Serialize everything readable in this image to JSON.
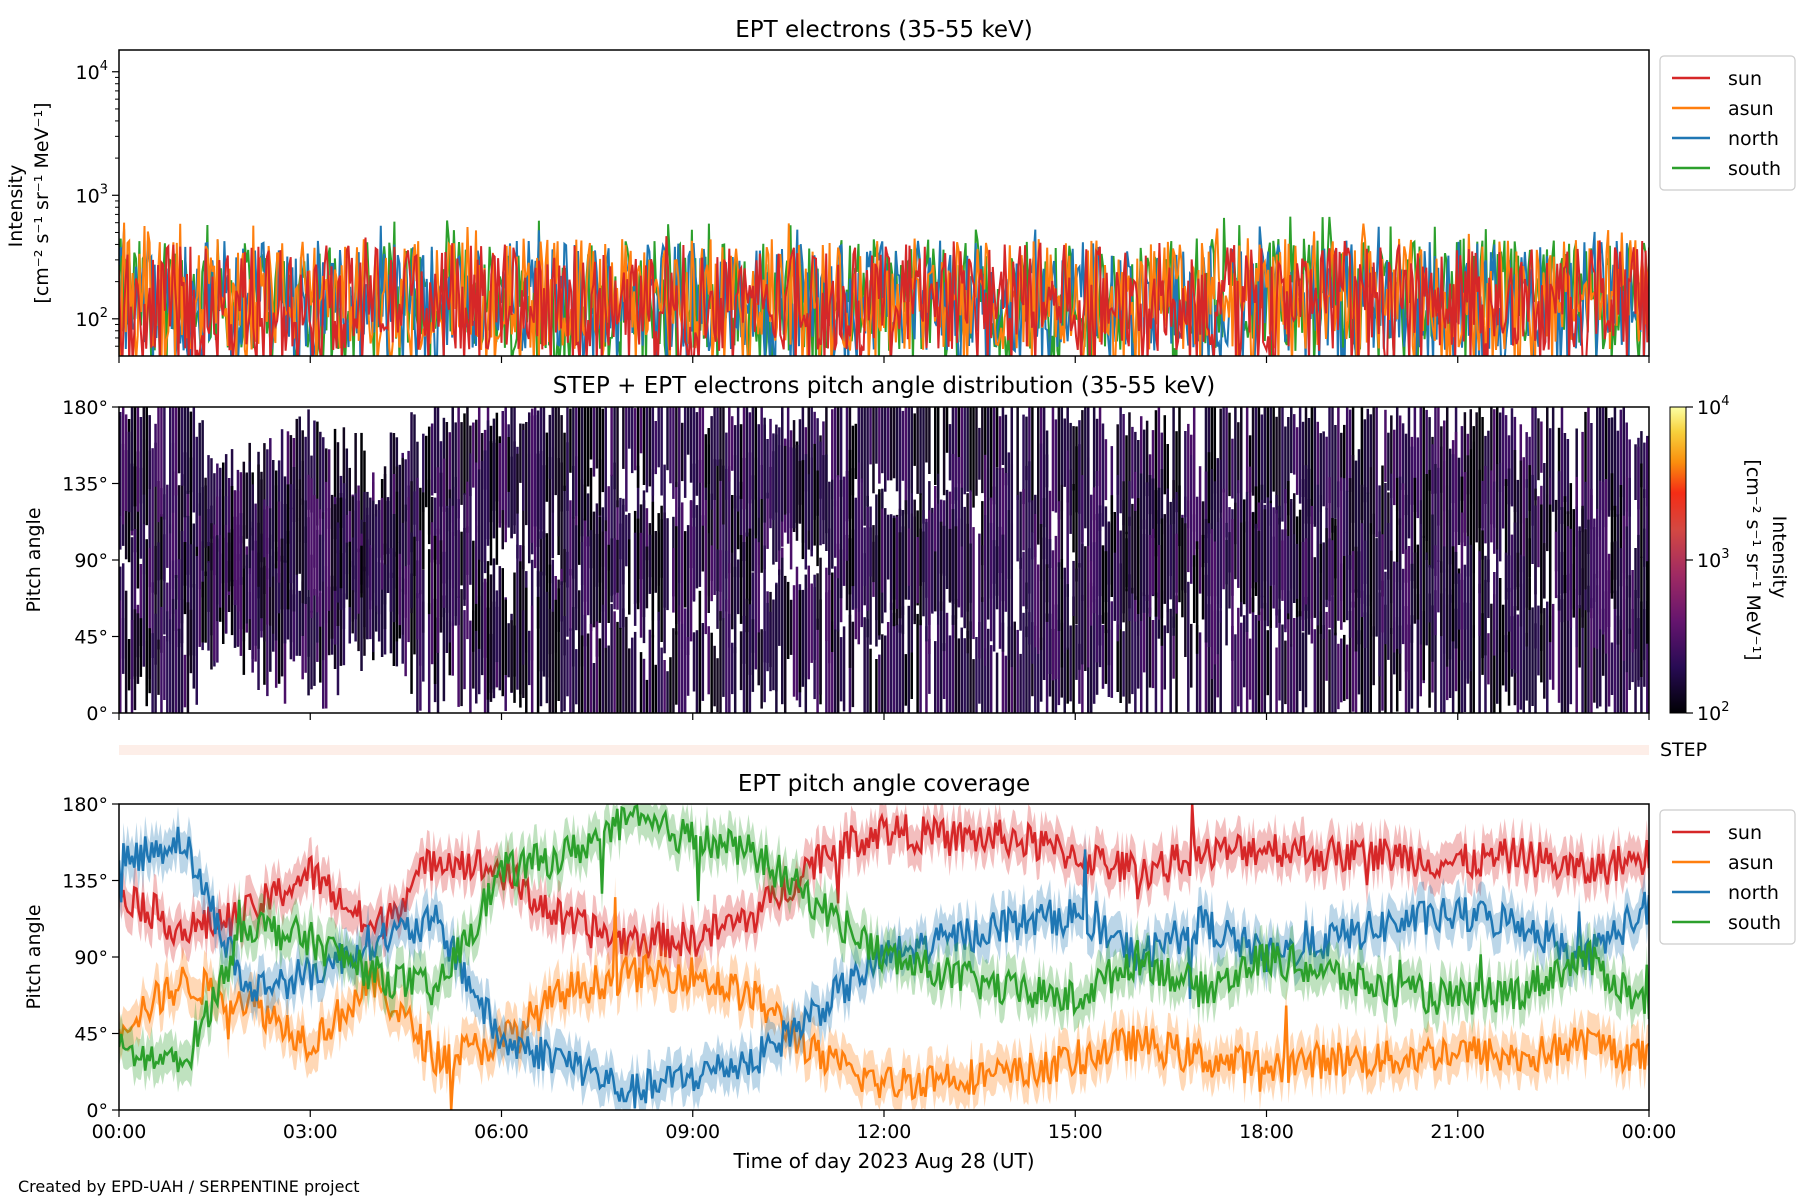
{
  "figure": {
    "credit": "Created by EPD-UAH / SERPENTINE project",
    "xlabel": "Time of day 2023 Aug 28 (UT)",
    "xticks": [
      "00:00",
      "03:00",
      "06:00",
      "09:00",
      "12:00",
      "15:00",
      "18:00",
      "21:00",
      "00:00"
    ]
  },
  "chart_data": [
    {
      "type": "line",
      "title": "EPT electrons (35-55 keV)",
      "ylabel_lines": [
        "Intensity",
        "[cm⁻² s⁻¹ sr⁻¹ MeV⁻¹]"
      ],
      "yscale": "log",
      "ylim": [
        50,
        15000
      ],
      "ytick_base": "10",
      "ytick_exps": [
        "2",
        "3",
        "4"
      ],
      "xlim_hours": [
        0,
        24
      ],
      "legend": {
        "placement": "outside-right",
        "entries": [
          "sun",
          "asun",
          "north",
          "south"
        ]
      },
      "series": [
        {
          "name": "south",
          "color": "#2ca02c",
          "typical_range": [
            55,
            450
          ],
          "max": 680
        },
        {
          "name": "north",
          "color": "#1f77b4",
          "typical_range": [
            55,
            430
          ],
          "max": 600
        },
        {
          "name": "asun",
          "color": "#ff7f0e",
          "typical_range": [
            55,
            450
          ],
          "max": 640
        },
        {
          "name": "sun",
          "color": "#d62728",
          "typical_range": [
            55,
            400
          ],
          "max": 470
        }
      ]
    },
    {
      "type": "heatmap",
      "title": "STEP + EPT electrons pitch angle distribution (35-55 keV)",
      "ylabel": "Pitch angle",
      "yticks": [
        "0°",
        "45°",
        "90°",
        "135°",
        "180°"
      ],
      "ylim": [
        0,
        180
      ],
      "xlim_hours": [
        0,
        24
      ],
      "colorbar": {
        "label_lines": [
          "Intensity",
          "[cm⁻² s⁻¹ sr⁻¹ MeV⁻¹]"
        ],
        "scale": "log",
        "range": [
          100,
          10000
        ],
        "tick_base": "10",
        "tick_exps": [
          "2",
          "3",
          "4"
        ],
        "colormap": "inferno"
      },
      "note": "dark purple (~100-200) bands, white gaps where no data"
    },
    {
      "type": "area",
      "label": "STEP",
      "color": "#fdeee8",
      "xlim_hours": [
        0,
        24
      ]
    },
    {
      "type": "line",
      "title": "EPT pitch angle coverage",
      "ylabel": "Pitch angle",
      "yticks": [
        "0°",
        "45°",
        "90°",
        "135°",
        "180°"
      ],
      "ylim": [
        0,
        180
      ],
      "xlim_hours": [
        0,
        24
      ],
      "legend": {
        "placement": "outside-right",
        "entries": [
          "sun",
          "asun",
          "north",
          "south"
        ]
      },
      "series": [
        {
          "name": "sun",
          "color": "#d62728",
          "band_halfwidth": 12,
          "keyframes": [
            [
              0,
              130
            ],
            [
              1,
              105
            ],
            [
              2,
              115
            ],
            [
              3,
              140
            ],
            [
              4,
              105
            ],
            [
              5,
              150
            ],
            [
              6,
              140
            ],
            [
              7,
              110
            ],
            [
              8,
              100
            ],
            [
              9,
              100
            ],
            [
              10,
              115
            ],
            [
              11,
              150
            ],
            [
              12,
              165
            ],
            [
              13,
              160
            ],
            [
              14,
              160
            ],
            [
              15,
              150
            ],
            [
              16,
              140
            ],
            [
              17,
              150
            ],
            [
              18,
              155
            ],
            [
              19,
              150
            ],
            [
              20,
              150
            ],
            [
              21,
              145
            ],
            [
              22,
              150
            ],
            [
              23,
              140
            ],
            [
              24,
              150
            ]
          ]
        },
        {
          "name": "asun",
          "color": "#ff7f0e",
          "band_halfwidth": 12,
          "keyframes": [
            [
              0,
              50
            ],
            [
              1,
              75
            ],
            [
              2,
              65
            ],
            [
              3,
              40
            ],
            [
              4,
              75
            ],
            [
              5,
              30
            ],
            [
              6,
              40
            ],
            [
              7,
              70
            ],
            [
              8,
              80
            ],
            [
              9,
              80
            ],
            [
              10,
              65
            ],
            [
              11,
              30
            ],
            [
              12,
              15
            ],
            [
              13,
              20
            ],
            [
              14,
              20
            ],
            [
              15,
              30
            ],
            [
              16,
              40
            ],
            [
              17,
              30
            ],
            [
              18,
              25
            ],
            [
              19,
              30
            ],
            [
              20,
              30
            ],
            [
              21,
              35
            ],
            [
              22,
              30
            ],
            [
              23,
              40
            ],
            [
              24,
              30
            ]
          ]
        },
        {
          "name": "north",
          "color": "#1f77b4",
          "band_halfwidth": 12,
          "keyframes": [
            [
              0,
              145
            ],
            [
              1,
              160
            ],
            [
              2,
              70
            ],
            [
              3,
              80
            ],
            [
              4,
              100
            ],
            [
              5,
              110
            ],
            [
              6,
              40
            ],
            [
              7,
              30
            ],
            [
              8,
              10
            ],
            [
              9,
              20
            ],
            [
              10,
              30
            ],
            [
              11,
              60
            ],
            [
              12,
              90
            ],
            [
              13,
              100
            ],
            [
              14,
              110
            ],
            [
              15,
              115
            ],
            [
              16,
              90
            ],
            [
              17,
              110
            ],
            [
              18,
              90
            ],
            [
              19,
              100
            ],
            [
              20,
              110
            ],
            [
              21,
              115
            ],
            [
              22,
              110
            ],
            [
              23,
              90
            ],
            [
              24,
              120
            ]
          ]
        },
        {
          "name": "south",
          "color": "#2ca02c",
          "band_halfwidth": 12,
          "keyframes": [
            [
              0,
              35
            ],
            [
              1,
              25
            ],
            [
              2,
              110
            ],
            [
              3,
              100
            ],
            [
              4,
              80
            ],
            [
              5,
              70
            ],
            [
              6,
              140
            ],
            [
              7,
              150
            ],
            [
              8,
              170
            ],
            [
              9,
              160
            ],
            [
              10,
              150
            ],
            [
              11,
              120
            ],
            [
              12,
              90
            ],
            [
              13,
              80
            ],
            [
              14,
              70
            ],
            [
              15,
              65
            ],
            [
              16,
              90
            ],
            [
              17,
              70
            ],
            [
              18,
              90
            ],
            [
              19,
              80
            ],
            [
              20,
              70
            ],
            [
              21,
              65
            ],
            [
              22,
              70
            ],
            [
              23,
              90
            ],
            [
              24,
              60
            ]
          ]
        }
      ]
    }
  ]
}
